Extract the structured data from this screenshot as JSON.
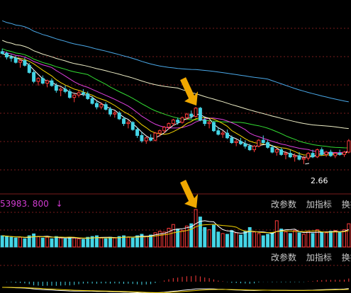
{
  "colors": {
    "background": "#000000",
    "grid": "#7a1b1b",
    "candle_up": "#ff3b3b",
    "candle_down": "#45d5e6",
    "arrow": "#f0a800",
    "ma5": "#ffffff",
    "ma10": "#f5d400",
    "ma20": "#e040e0",
    "ma30": "#33dd33",
    "ma60": "#f0f0c8",
    "ma120": "#4aa8e8",
    "volume_label": "#d03bd0"
  },
  "price_panel": {
    "low_marker": "2.66",
    "menu": [
      "改参数",
      "加指标",
      "换指"
    ]
  },
  "volume_panel": {
    "header_value": "53983. 800",
    "header_arrow": "↓",
    "menu": [
      "改参数",
      "加指标",
      "换指"
    ]
  },
  "chart_data": {
    "type": "candlestick",
    "price_range": [
      2.3,
      5.3
    ],
    "low_annotation": 2.66,
    "candles": [
      [
        4.55,
        4.6,
        4.5,
        4.52
      ],
      [
        4.52,
        4.55,
        4.42,
        4.46
      ],
      [
        4.46,
        4.5,
        4.38,
        4.44
      ],
      [
        4.44,
        4.48,
        4.35,
        4.37
      ],
      [
        4.37,
        4.42,
        4.28,
        4.4
      ],
      [
        4.4,
        4.45,
        4.3,
        4.32
      ],
      [
        4.32,
        4.36,
        4.18,
        4.2
      ],
      [
        4.2,
        4.24,
        4.02,
        4.05
      ],
      [
        4.05,
        4.12,
        3.98,
        4.1
      ],
      [
        4.1,
        4.15,
        4.0,
        4.02
      ],
      [
        4.02,
        4.08,
        3.95,
        4.06
      ],
      [
        4.06,
        4.1,
        3.96,
        3.98
      ],
      [
        3.98,
        4.02,
        3.86,
        3.9
      ],
      [
        3.9,
        3.95,
        3.8,
        3.92
      ],
      [
        3.92,
        3.98,
        3.85,
        3.88
      ],
      [
        3.88,
        3.92,
        3.76,
        3.78
      ],
      [
        3.78,
        3.84,
        3.7,
        3.82
      ],
      [
        3.82,
        3.9,
        3.78,
        3.86
      ],
      [
        3.86,
        3.92,
        3.8,
        3.84
      ],
      [
        3.84,
        3.88,
        3.74,
        3.76
      ],
      [
        3.76,
        3.8,
        3.66,
        3.68
      ],
      [
        3.68,
        3.72,
        3.58,
        3.62
      ],
      [
        3.62,
        3.7,
        3.58,
        3.66
      ],
      [
        3.66,
        3.7,
        3.56,
        3.58
      ],
      [
        3.58,
        3.62,
        3.46,
        3.5
      ],
      [
        3.5,
        3.56,
        3.44,
        3.52
      ],
      [
        3.52,
        3.55,
        3.4,
        3.42
      ],
      [
        3.42,
        3.46,
        3.3,
        3.34
      ],
      [
        3.34,
        3.4,
        3.26,
        3.36
      ],
      [
        3.36,
        3.38,
        3.22,
        3.24
      ],
      [
        3.24,
        3.28,
        3.1,
        3.14
      ],
      [
        3.14,
        3.2,
        3.02,
        3.05
      ],
      [
        3.05,
        3.12,
        3.0,
        3.1
      ],
      [
        3.1,
        3.16,
        3.04,
        3.06
      ],
      [
        3.06,
        3.2,
        3.04,
        3.18
      ],
      [
        3.18,
        3.24,
        3.12,
        3.22
      ],
      [
        3.22,
        3.3,
        3.18,
        3.28
      ],
      [
        3.28,
        3.36,
        3.24,
        3.34
      ],
      [
        3.34,
        3.42,
        3.3,
        3.4
      ],
      [
        3.4,
        3.44,
        3.32,
        3.36
      ],
      [
        3.36,
        3.46,
        3.34,
        3.44
      ],
      [
        3.44,
        3.52,
        3.4,
        3.5
      ],
      [
        3.5,
        3.56,
        3.42,
        3.46
      ],
      [
        3.46,
        3.62,
        3.44,
        3.6
      ],
      [
        3.6,
        3.62,
        3.38,
        3.4
      ],
      [
        3.4,
        3.44,
        3.3,
        3.34
      ],
      [
        3.34,
        3.4,
        3.26,
        3.36
      ],
      [
        3.36,
        3.38,
        3.2,
        3.22
      ],
      [
        3.22,
        3.28,
        3.14,
        3.16
      ],
      [
        3.16,
        3.22,
        3.1,
        3.18
      ],
      [
        3.18,
        3.24,
        3.08,
        3.1
      ],
      [
        3.1,
        3.14,
        3.0,
        3.02
      ],
      [
        3.02,
        3.08,
        2.96,
        3.04
      ],
      [
        3.04,
        3.1,
        2.98,
        3.0
      ],
      [
        3.0,
        3.06,
        2.92,
        2.96
      ],
      [
        2.96,
        3.0,
        2.88,
        2.9
      ],
      [
        2.9,
        2.98,
        2.86,
        2.96
      ],
      [
        2.96,
        3.08,
        2.94,
        3.06
      ],
      [
        3.06,
        3.14,
        3.0,
        3.02
      ],
      [
        3.02,
        3.06,
        2.92,
        2.94
      ],
      [
        2.94,
        2.98,
        2.84,
        2.86
      ],
      [
        2.86,
        2.92,
        2.8,
        2.9
      ],
      [
        2.9,
        2.94,
        2.8,
        2.82
      ],
      [
        2.82,
        2.88,
        2.74,
        2.84
      ],
      [
        2.84,
        2.9,
        2.76,
        2.78
      ],
      [
        2.78,
        2.84,
        2.7,
        2.8
      ],
      [
        2.8,
        2.86,
        2.72,
        2.74
      ],
      [
        2.74,
        2.8,
        2.66,
        2.76
      ],
      [
        2.76,
        2.86,
        2.72,
        2.84
      ],
      [
        2.84,
        2.9,
        2.76,
        2.78
      ],
      [
        2.78,
        2.92,
        2.76,
        2.9
      ],
      [
        2.9,
        2.94,
        2.8,
        2.82
      ],
      [
        2.82,
        2.88,
        2.78,
        2.86
      ],
      [
        2.86,
        2.9,
        2.78,
        2.8
      ],
      [
        2.8,
        2.86,
        2.76,
        2.84
      ],
      [
        2.84,
        2.9,
        2.8,
        2.82
      ],
      [
        2.82,
        2.88,
        2.78,
        2.86
      ],
      [
        2.86,
        3.08,
        2.84,
        3.05
      ]
    ],
    "volume": [
      30,
      28,
      26,
      24,
      26,
      22,
      30,
      35,
      28,
      24,
      26,
      22,
      28,
      24,
      22,
      26,
      24,
      22,
      20,
      26,
      28,
      30,
      24,
      22,
      26,
      24,
      28,
      30,
      26,
      24,
      30,
      34,
      28,
      32,
      38,
      42,
      40,
      50,
      60,
      48,
      44,
      56,
      62,
      100,
      80,
      52,
      46,
      58,
      40,
      36,
      34,
      44,
      38,
      32,
      42,
      52,
      40,
      36,
      30,
      34,
      38,
      70,
      48,
      40,
      36,
      44,
      38,
      34,
      42,
      36,
      46,
      40,
      38,
      42,
      44,
      40,
      46,
      62
    ],
    "volume_max": 100
  }
}
